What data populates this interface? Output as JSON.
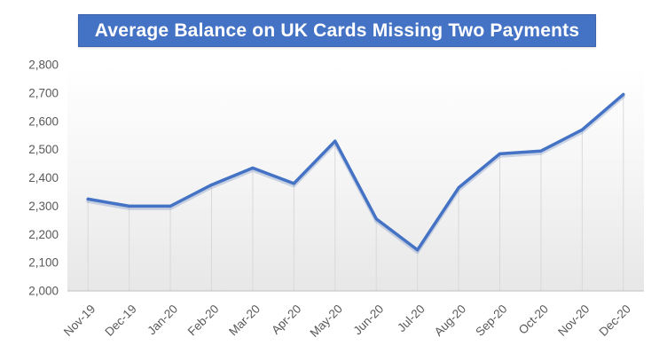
{
  "title": "Average Balance on UK Cards Missing Two Payments",
  "colors": {
    "title_bg": "#4472C4",
    "title_border": "#3a62ae",
    "title_text": "#ffffff",
    "line": "#4472C4",
    "line_shadow": "rgba(100,130,185,0.30)",
    "dropline": "#d9d9d9",
    "axis_line": "#c9c9c9",
    "tick_text": "#595959",
    "plot_gradient_top": "#ffffff",
    "plot_gradient_mid": "#f6f6f6",
    "plot_gradient_bottom": "#e7e7e7"
  },
  "chart_data": {
    "type": "line",
    "title": "Average Balance on UK Cards Missing Two Payments",
    "categories": [
      "Nov-19",
      "Dec-19",
      "Jan-20",
      "Feb-20",
      "Mar-20",
      "Apr-20",
      "May-20",
      "Jun-20",
      "Jul-20",
      "Aug-20",
      "Sep-20",
      "Oct-20",
      "Nov-20",
      "Dec-20"
    ],
    "values": [
      2325,
      2300,
      2300,
      2375,
      2435,
      2380,
      2530,
      2255,
      2145,
      2365,
      2485,
      2495,
      2570,
      2695
    ],
    "xlabel": "",
    "ylabel": "",
    "ylim": [
      2000,
      2800
    ],
    "y_tick_step": 100,
    "y_tick_labels": [
      "2,000",
      "2,100",
      "2,200",
      "2,300",
      "2,400",
      "2,500",
      "2,600",
      "2,700",
      "2,800"
    ],
    "x_tick_rotation_deg": -45,
    "grid": "vertical-droplines-per-point",
    "legend": "none"
  }
}
